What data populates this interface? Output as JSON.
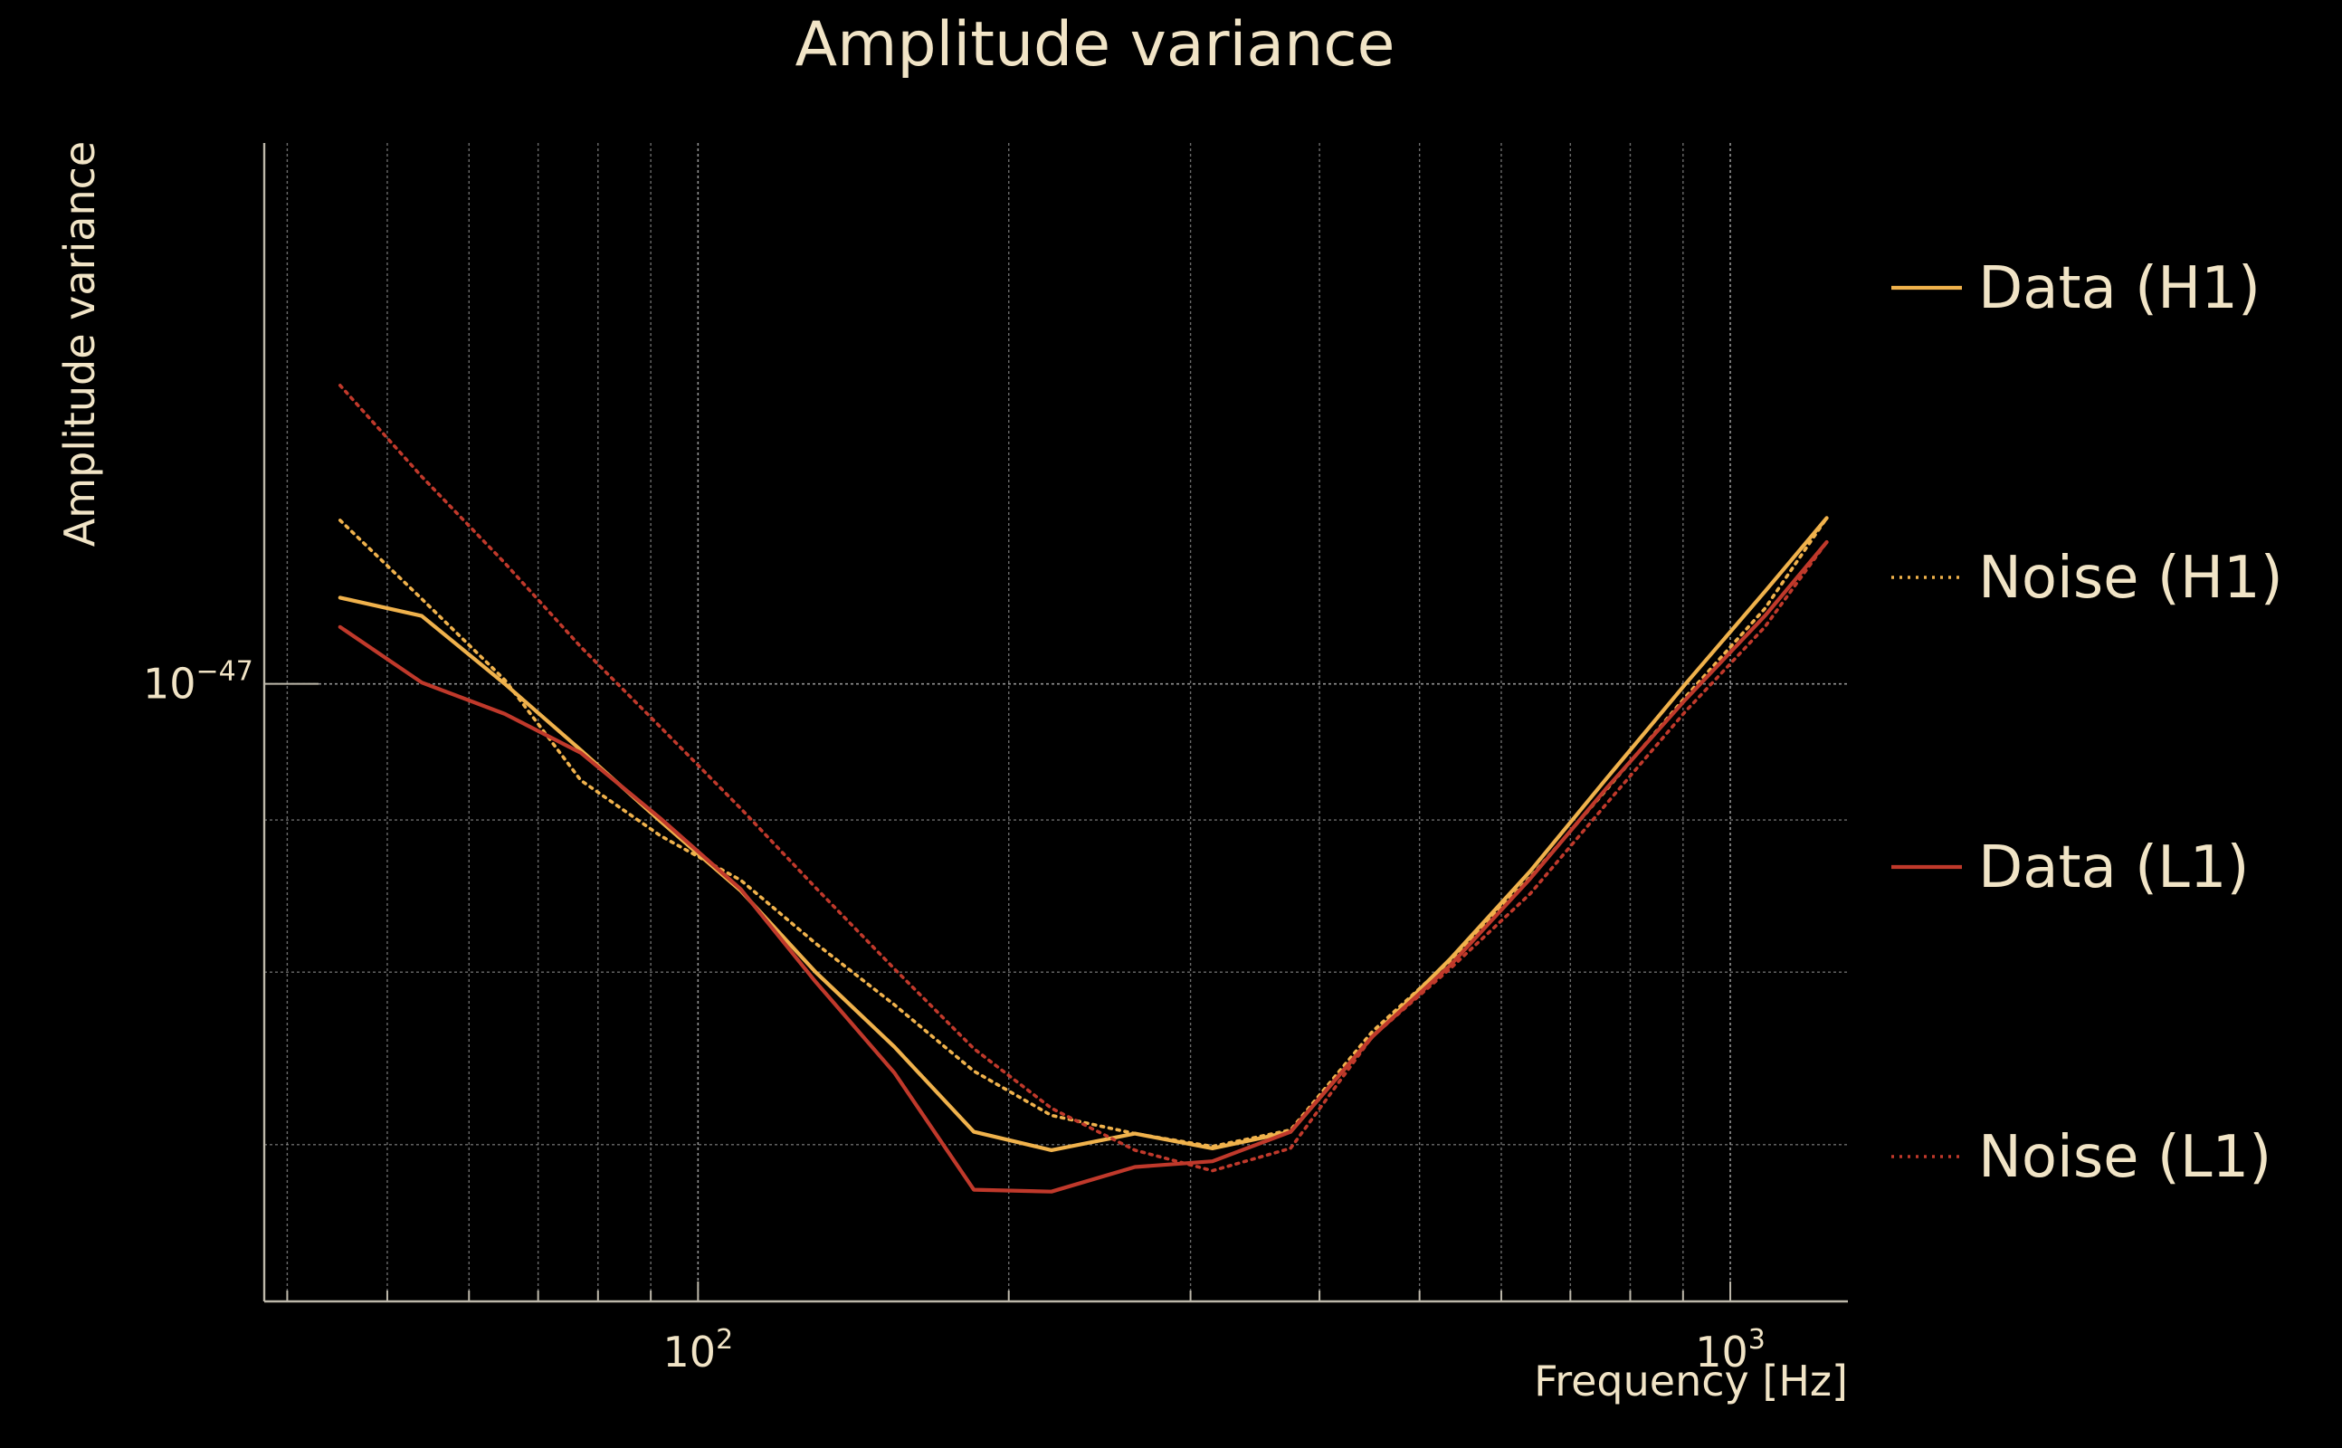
{
  "colors": {
    "background": "#000000",
    "text": "#f1e4c6",
    "h1": "#f0b24c",
    "l1": "#c0392b"
  },
  "chart_data": {
    "type": "line",
    "title": "Amplitude variance",
    "xlabel": "Frequency [Hz]",
    "ylabel": "Amplitude variance",
    "xscale": "log",
    "yscale": "log",
    "xlim": [
      38,
      1300
    ],
    "ylim": [
      6.2e-48,
      1.52e-47
    ],
    "x_tick_labels": [
      {
        "value": 100,
        "base": "10",
        "exp": "2"
      },
      {
        "value": 1000,
        "base": "10",
        "exp": "3"
      }
    ],
    "y_tick_labels": [
      {
        "value": 1e-47,
        "base": "10",
        "exp": "−47"
      }
    ],
    "grid": true,
    "legend_position": "right",
    "x": [
      45,
      54,
      65,
      77,
      92,
      110,
      130,
      155,
      185,
      220,
      265,
      315,
      375,
      450,
      535,
      640,
      760,
      905,
      1080,
      1240
    ],
    "series": [
      {
        "name": "Data (H1)",
        "color": "#f0b24c",
        "style": "solid",
        "values": [
          1.069e-47,
          1.054e-47,
          1e-47,
          9.5e-48,
          8.99e-48,
          8.52e-48,
          8e-48,
          7.55e-48,
          7.07e-48,
          6.97e-48,
          7.06e-48,
          6.98e-48,
          7.07e-48,
          7.61e-48,
          8.08e-48,
          8.65e-48,
          9.3e-48,
          1e-47,
          1.074e-47,
          1.137e-47
        ]
      },
      {
        "name": "Noise (H1)",
        "color": "#f0b24c",
        "style": "dotted",
        "values": [
          1.135e-47,
          1.068e-47,
          1.003e-47,
          9.28e-48,
          8.89e-48,
          8.59e-48,
          8.18e-48,
          7.8e-48,
          7.41e-48,
          7.16e-48,
          7.06e-48,
          6.99e-48,
          7.08e-48,
          7.64e-48,
          8.07e-48,
          8.61e-48,
          9.22e-48,
          9.9e-48,
          1.06e-47,
          1.137e-47
        ]
      },
      {
        "name": "Data (L1)",
        "color": "#c0392b",
        "style": "solid",
        "values": [
          1.045e-47,
          1.001e-47,
          9.77e-48,
          9.48e-48,
          9.01e-48,
          8.53e-48,
          7.94e-48,
          7.4e-48,
          6.76e-48,
          6.75e-48,
          6.88e-48,
          6.91e-48,
          7.07e-48,
          7.61e-48,
          8.04e-48,
          8.6e-48,
          9.23e-48,
          9.88e-48,
          1.054e-47,
          1.116e-47
        ]
      },
      {
        "name": "Noise (L1)",
        "color": "#c0392b",
        "style": "dotted",
        "values": [
          1.26e-47,
          1.174e-47,
          1.098e-47,
          1.029e-47,
          9.67e-48,
          9.08e-48,
          8.54e-48,
          8.02e-48,
          7.54e-48,
          7.2e-48,
          6.97e-48,
          6.86e-48,
          6.98e-48,
          7.61e-48,
          8.02e-48,
          8.5e-48,
          9.12e-48,
          9.79e-48,
          1.045e-47,
          1.116e-47
        ]
      }
    ]
  }
}
